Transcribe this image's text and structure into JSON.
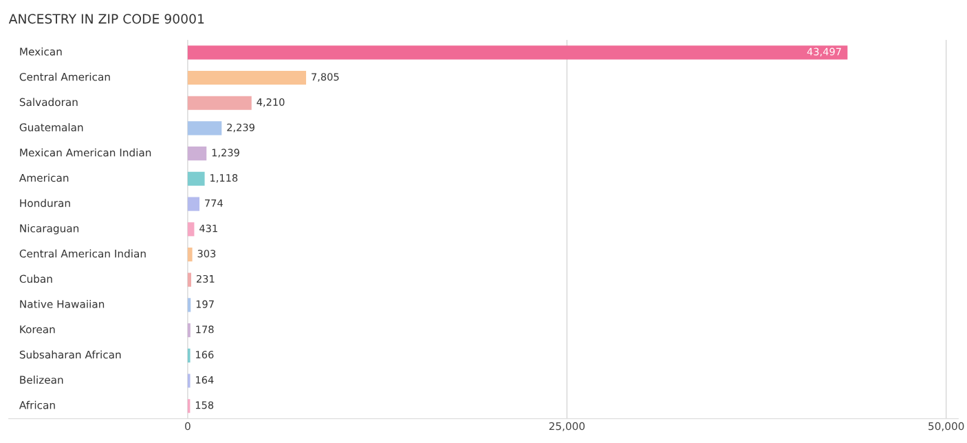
{
  "chart_data": {
    "type": "bar",
    "orientation": "horizontal",
    "title": "ANCESTRY IN ZIP CODE 90001",
    "categories": [
      "Mexican",
      "Central American",
      "Salvadoran",
      "Guatemalan",
      "Mexican American Indian",
      "American",
      "Honduran",
      "Nicaraguan",
      "Central American Indian",
      "Cuban",
      "Native Hawaiian",
      "Korean",
      "Subsaharan African",
      "Belizean",
      "African"
    ],
    "values": [
      43497,
      7805,
      4210,
      2239,
      1239,
      1118,
      774,
      431,
      303,
      231,
      197,
      178,
      166,
      164,
      158
    ],
    "colors": [
      "#f06a95",
      "#f9c394",
      "#f0aaaa",
      "#a9c5ec",
      "#cdb0d6",
      "#7dcdd0",
      "#b4bbee",
      "#f7a7c3",
      "#f9c394",
      "#f0aaaa",
      "#a9c5ec",
      "#cdb0d6",
      "#7dcdd0",
      "#b4bbee",
      "#f7a7c3"
    ],
    "xlim": [
      -11800,
      50800
    ],
    "xticks": [
      {
        "value": 0,
        "label": "0"
      },
      {
        "value": 25000,
        "label": "25,000"
      },
      {
        "value": 50000,
        "label": "50,000"
      }
    ],
    "value_labels": [
      "43,497",
      "7,805",
      "4,210",
      "2,239",
      "1,239",
      "1,118",
      "774",
      "431",
      "303",
      "231",
      "197",
      "178",
      "166",
      "164",
      "158"
    ],
    "grid": "x"
  }
}
